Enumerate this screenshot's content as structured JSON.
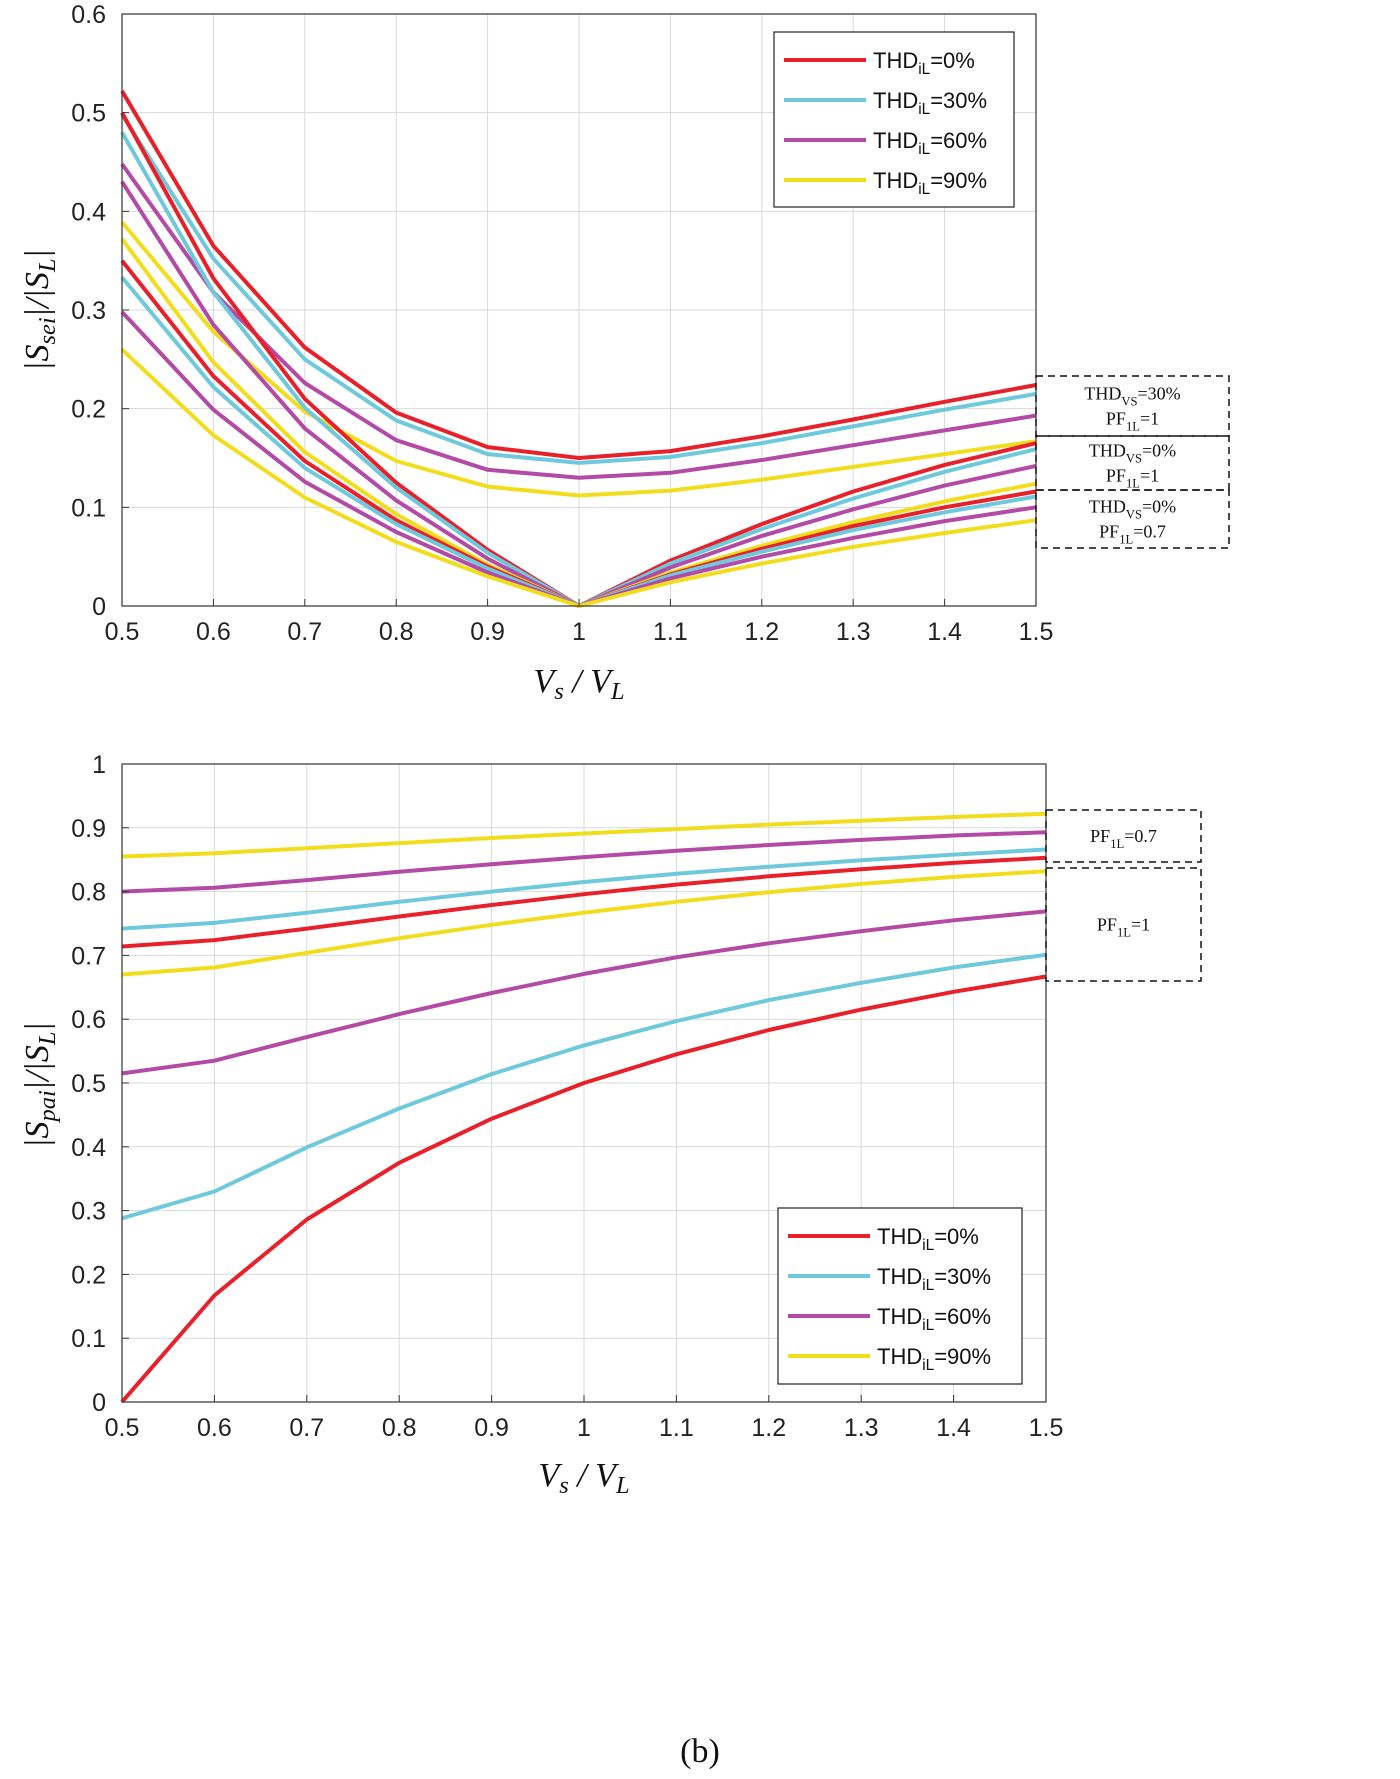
{
  "caption": "(b)",
  "colors": {
    "thd0": "#e8202a",
    "thd30": "#6ec9dc",
    "thd60": "#b34aa6",
    "thd90": "#f2dd1c"
  },
  "chart_data": [
    {
      "type": "line",
      "xlabel": "Vs / VL",
      "ylabel": "|Ssei|/|SL|",
      "xlim": [
        0.5,
        1.5
      ],
      "ylim": [
        0,
        0.6
      ],
      "grid": true,
      "legend_position": "top-right",
      "x": [
        0.5,
        0.6,
        0.7,
        0.8,
        0.9,
        1.0,
        1.1,
        1.2,
        1.3,
        1.4,
        1.5
      ],
      "xticks": [
        "0.5",
        "0.6",
        "0.7",
        "0.8",
        "0.9",
        "1",
        "1.1",
        "1.2",
        "1.3",
        "1.4",
        "1.5"
      ],
      "yticks": [
        "0",
        "0.1",
        "0.2",
        "0.3",
        "0.4",
        "0.5",
        "0.6"
      ],
      "legend": [
        {
          "key": "thd0",
          "label": "THDiL=0%",
          "base": "THD",
          "sub": "iL",
          "rest": "=0%"
        },
        {
          "key": "thd30",
          "label": "THDiL=30%",
          "base": "THD",
          "sub": "iL",
          "rest": "=30%"
        },
        {
          "key": "thd60",
          "label": "THDiL=60%",
          "base": "THD",
          "sub": "iL",
          "rest": "=60%"
        },
        {
          "key": "thd90",
          "label": "THDiL=90%",
          "base": "THD",
          "sub": "iL",
          "rest": "=90%"
        }
      ],
      "series": [
        {
          "group": "THDVS=30%, PF1L=1",
          "color_key": "thd0",
          "values": [
            0.522,
            0.365,
            0.262,
            0.196,
            0.161,
            0.15,
            0.157,
            0.172,
            0.189,
            0.207,
            0.224
          ]
        },
        {
          "group": "THDVS=30%, PF1L=1",
          "color_key": "thd30",
          "values": [
            0.498,
            0.352,
            0.25,
            0.188,
            0.154,
            0.145,
            0.151,
            0.165,
            0.182,
            0.199,
            0.215
          ]
        },
        {
          "group": "THDVS=30%, PF1L=1",
          "color_key": "thd60",
          "values": [
            0.448,
            0.318,
            0.226,
            0.168,
            0.138,
            0.13,
            0.135,
            0.148,
            0.163,
            0.178,
            0.193
          ]
        },
        {
          "group": "THDVS=30%, PF1L=1",
          "color_key": "thd90",
          "values": [
            0.389,
            0.278,
            0.197,
            0.147,
            0.121,
            0.112,
            0.117,
            0.128,
            0.141,
            0.154,
            0.167
          ]
        },
        {
          "group": "THDVS=0%, PF1L=1",
          "color_key": "thd0",
          "values": [
            0.5,
            0.332,
            0.21,
            0.125,
            0.057,
            0,
            0.046,
            0.083,
            0.116,
            0.143,
            0.165
          ]
        },
        {
          "group": "THDVS=0%, PF1L=1",
          "color_key": "thd30",
          "values": [
            0.48,
            0.318,
            0.201,
            0.12,
            0.054,
            0,
            0.043,
            0.078,
            0.109,
            0.136,
            0.159
          ]
        },
        {
          "group": "THDVS=0%, PF1L=1",
          "color_key": "thd60",
          "values": [
            0.43,
            0.285,
            0.18,
            0.107,
            0.048,
            0,
            0.039,
            0.071,
            0.098,
            0.122,
            0.142
          ]
        },
        {
          "group": "THDVS=0%, PF1L=1",
          "color_key": "thd90",
          "values": [
            0.372,
            0.247,
            0.156,
            0.093,
            0.042,
            0,
            0.034,
            0.061,
            0.085,
            0.106,
            0.124
          ]
        },
        {
          "group": "THDVS=0%, PF1L=0.7",
          "color_key": "thd0",
          "values": [
            0.35,
            0.233,
            0.147,
            0.087,
            0.04,
            0,
            0.032,
            0.058,
            0.081,
            0.1,
            0.116
          ]
        },
        {
          "group": "THDVS=0%, PF1L=0.7",
          "color_key": "thd30",
          "values": [
            0.333,
            0.222,
            0.14,
            0.083,
            0.038,
            0,
            0.031,
            0.055,
            0.077,
            0.095,
            0.111
          ]
        },
        {
          "group": "THDVS=0%, PF1L=0.7",
          "color_key": "thd60",
          "values": [
            0.298,
            0.199,
            0.126,
            0.075,
            0.034,
            0,
            0.028,
            0.05,
            0.069,
            0.086,
            0.1
          ]
        },
        {
          "group": "THDVS=0%, PF1L=0.7",
          "color_key": "thd90",
          "values": [
            0.26,
            0.173,
            0.11,
            0.065,
            0.03,
            0,
            0.024,
            0.043,
            0.06,
            0.074,
            0.087
          ]
        }
      ],
      "annotations": [
        {
          "lines": [
            {
              "base": "THD",
              "sub": "VS",
              "rest": "=30%"
            },
            {
              "base": "PF",
              "sub": "1L",
              "rest": "=1"
            }
          ]
        },
        {
          "lines": [
            {
              "base": "THD",
              "sub": "VS",
              "rest": "=0%"
            },
            {
              "base": "PF",
              "sub": "1L",
              "rest": "=1"
            }
          ]
        },
        {
          "lines": [
            {
              "base": "THD",
              "sub": "VS",
              "rest": "=0%"
            },
            {
              "base": "PF",
              "sub": "1L",
              "rest": "=0.7"
            }
          ]
        }
      ]
    },
    {
      "type": "line",
      "xlabel": "Vs / VL",
      "ylabel": "|Spai|/|SL|",
      "xlim": [
        0.5,
        1.5
      ],
      "ylim": [
        0,
        1
      ],
      "grid": true,
      "legend_position": "bottom-right",
      "x": [
        0.5,
        0.6,
        0.7,
        0.8,
        0.9,
        1.0,
        1.1,
        1.2,
        1.3,
        1.4,
        1.5
      ],
      "xticks": [
        "0.5",
        "0.6",
        "0.7",
        "0.8",
        "0.9",
        "1",
        "1.1",
        "1.2",
        "1.3",
        "1.4",
        "1.5"
      ],
      "yticks": [
        "0",
        "0.1",
        "0.2",
        "0.3",
        "0.4",
        "0.5",
        "0.6",
        "0.7",
        "0.8",
        "0.9",
        "1"
      ],
      "legend": [
        {
          "key": "thd0",
          "label": "THDiL=0%",
          "base": "THD",
          "sub": "iL",
          "rest": "=0%"
        },
        {
          "key": "thd30",
          "label": "THDiL=30%",
          "base": "THD",
          "sub": "iL",
          "rest": "=30%"
        },
        {
          "key": "thd60",
          "label": "THDiL=60%",
          "base": "THD",
          "sub": "iL",
          "rest": "=60%"
        },
        {
          "key": "thd90",
          "label": "THDiL=90%",
          "base": "THD",
          "sub": "iL",
          "rest": "=90%"
        }
      ],
      "series": [
        {
          "group": "PF1L=0.7",
          "color_key": "thd90",
          "values": [
            0.855,
            0.86,
            0.868,
            0.876,
            0.884,
            0.891,
            0.898,
            0.905,
            0.911,
            0.917,
            0.922
          ]
        },
        {
          "group": "PF1L=0.7",
          "color_key": "thd60",
          "values": [
            0.8,
            0.806,
            0.818,
            0.831,
            0.843,
            0.854,
            0.864,
            0.873,
            0.881,
            0.888,
            0.893
          ]
        },
        {
          "group": "PF1L=0.7",
          "color_key": "thd30",
          "values": [
            0.742,
            0.751,
            0.767,
            0.784,
            0.8,
            0.815,
            0.828,
            0.839,
            0.849,
            0.858,
            0.866
          ]
        },
        {
          "group": "PF1L=0.7",
          "color_key": "thd0",
          "values": [
            0.714,
            0.724,
            0.742,
            0.761,
            0.779,
            0.796,
            0.811,
            0.824,
            0.835,
            0.845,
            0.853
          ]
        },
        {
          "group": "PF1L=1",
          "color_key": "thd90",
          "values": [
            0.67,
            0.681,
            0.704,
            0.727,
            0.748,
            0.767,
            0.784,
            0.799,
            0.812,
            0.823,
            0.832
          ]
        },
        {
          "group": "PF1L=1",
          "color_key": "thd60",
          "values": [
            0.515,
            0.535,
            0.572,
            0.608,
            0.641,
            0.671,
            0.697,
            0.719,
            0.738,
            0.755,
            0.769
          ]
        },
        {
          "group": "PF1L=1",
          "color_key": "thd30",
          "values": [
            0.288,
            0.33,
            0.399,
            0.46,
            0.514,
            0.559,
            0.597,
            0.63,
            0.657,
            0.681,
            0.701
          ]
        },
        {
          "group": "PF1L=1",
          "color_key": "thd0",
          "values": [
            0,
            0.167,
            0.286,
            0.375,
            0.444,
            0.5,
            0.545,
            0.583,
            0.615,
            0.643,
            0.667
          ]
        }
      ],
      "annotations": [
        {
          "lines": [
            {
              "base": "PF",
              "sub": "1L",
              "rest": "=0.7"
            }
          ]
        },
        {
          "lines": [
            {
              "base": "PF",
              "sub": "1L",
              "rest": "=1"
            }
          ]
        }
      ]
    }
  ]
}
